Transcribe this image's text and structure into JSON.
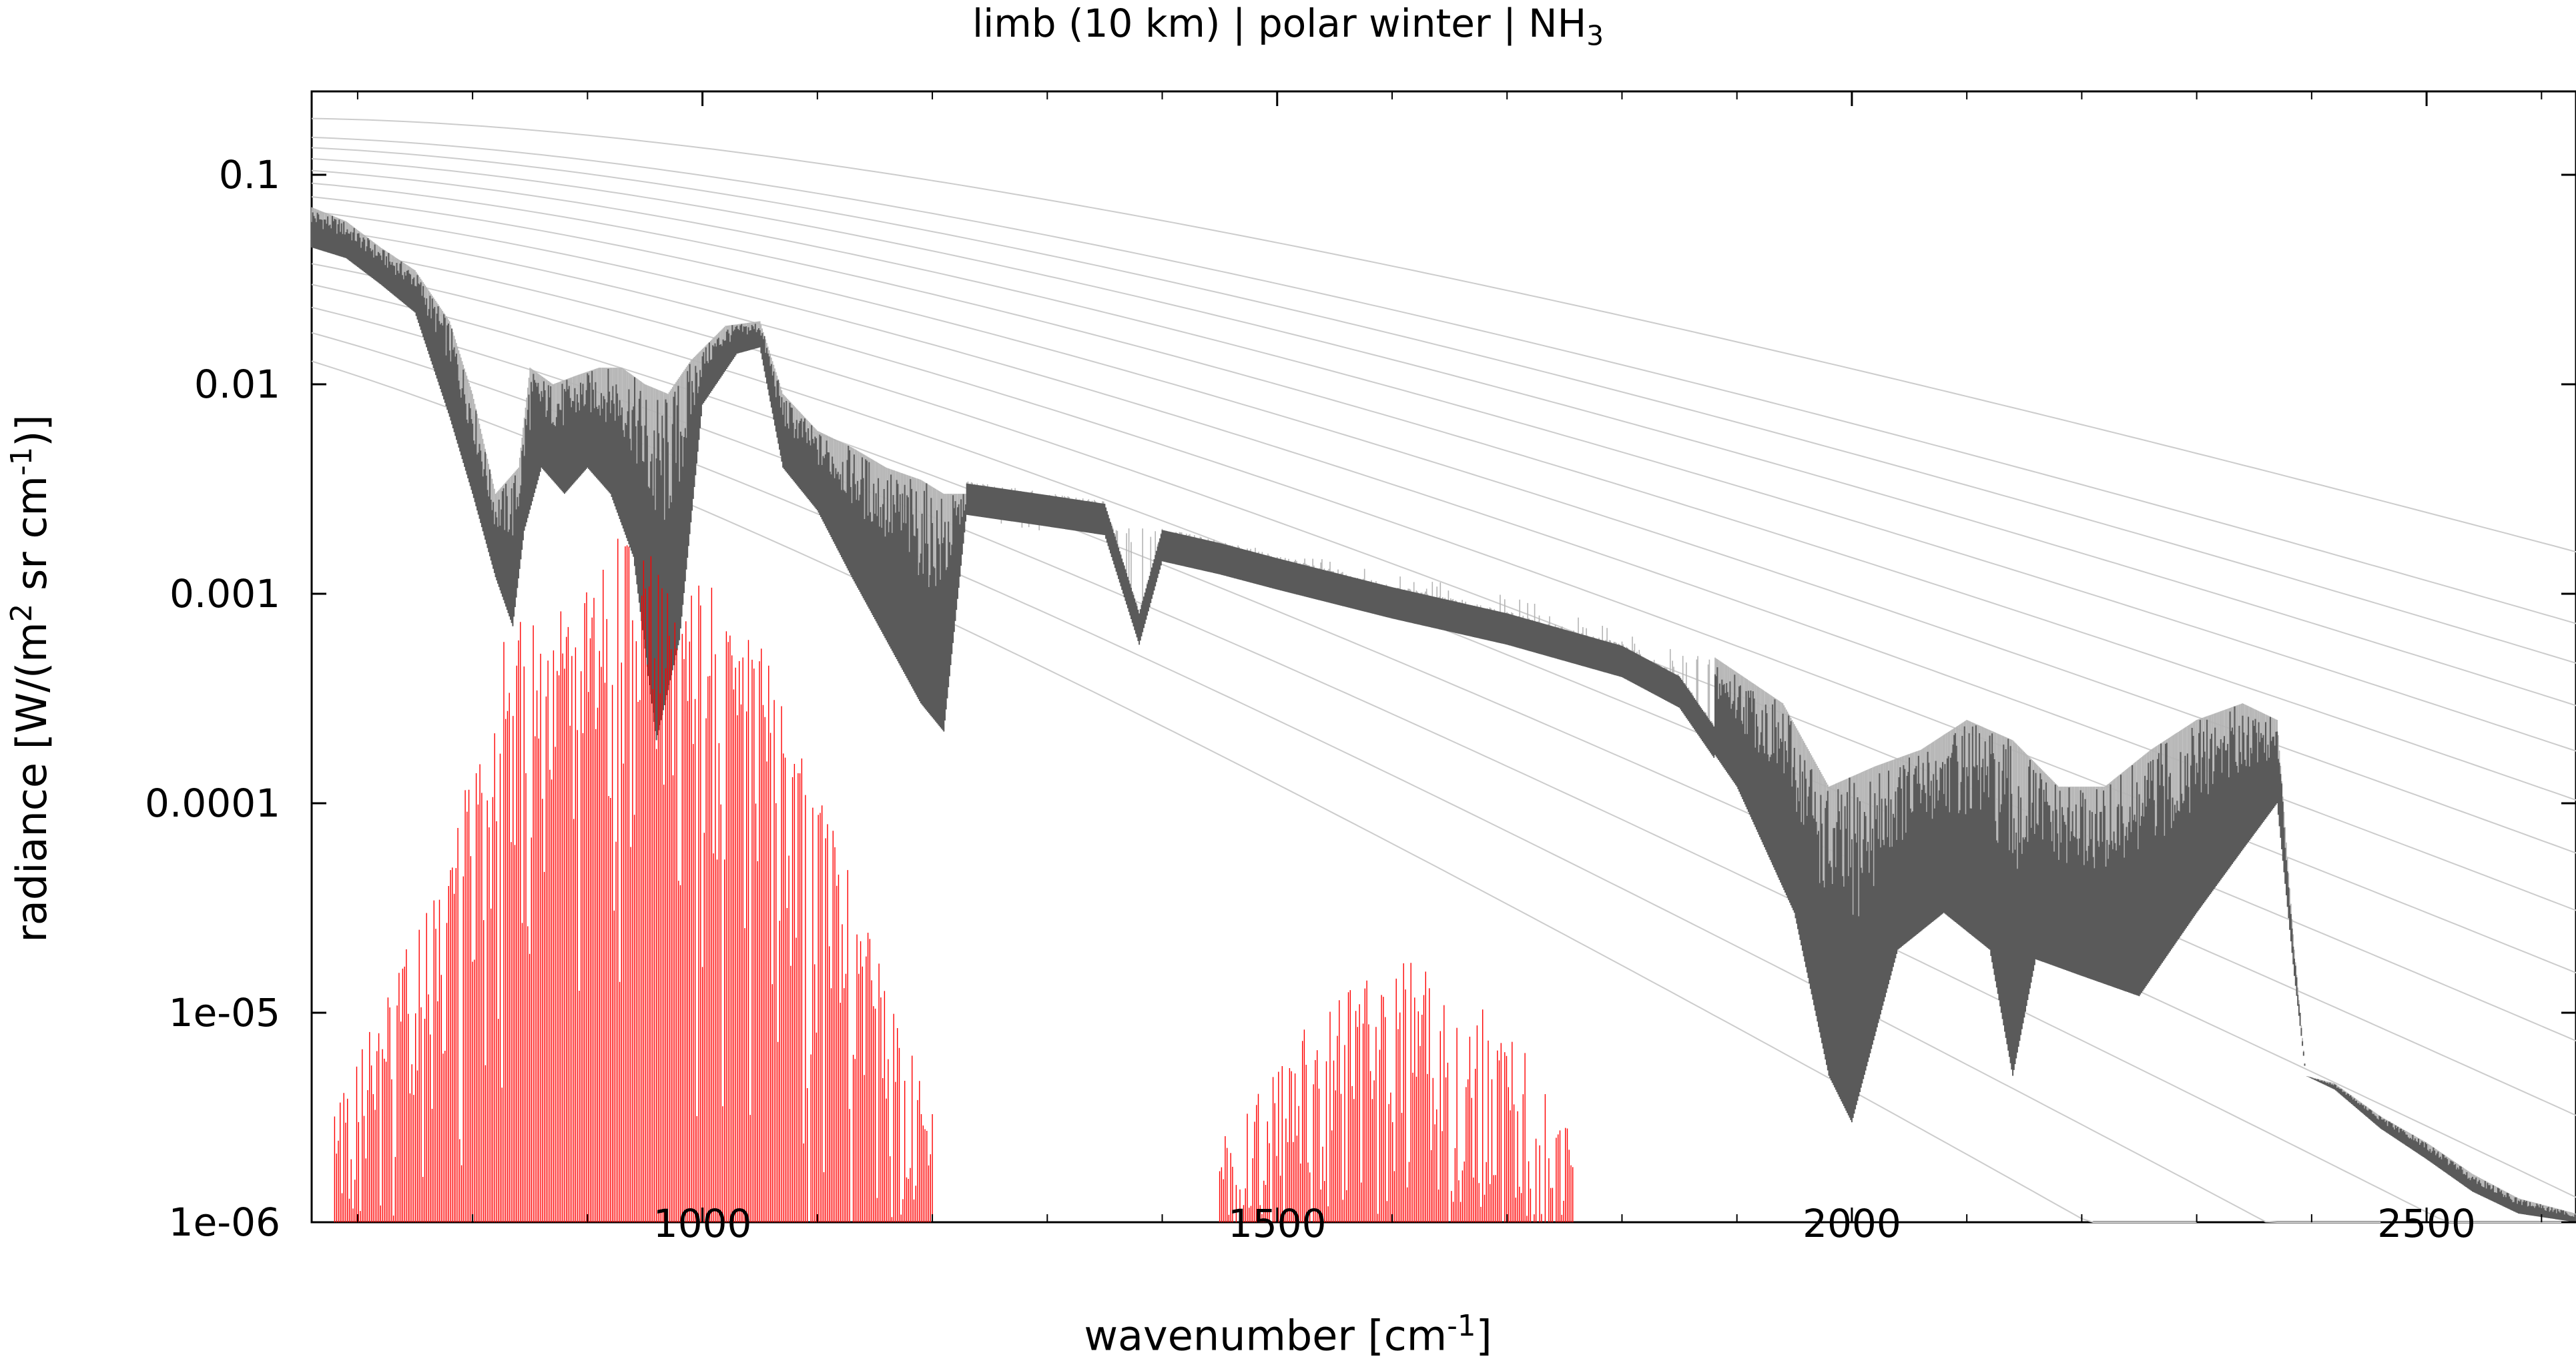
{
  "chart_data": {
    "type": "line",
    "title": "limb (10 km) | polar winter | NH",
    "title_subscript": "3",
    "xlabel": "wavenumber [cm",
    "xlabel_sup": "-1",
    "xlabel_close": "]",
    "ylabel": "radiance [W/(m",
    "ylabel_sup1": "2",
    "ylabel_mid": " sr cm",
    "ylabel_sup2": "-1",
    "ylabel_close": ")]",
    "xlim": [
      660,
      2630
    ],
    "ylim": [
      1e-06,
      0.25
    ],
    "y_scale": "log",
    "x_ticks": [
      1000,
      1500,
      2000,
      2500
    ],
    "y_ticks": [
      0.1,
      0.01,
      0.001,
      0.0001,
      1e-05,
      1e-06
    ],
    "y_tick_labels": [
      "0.1",
      "0.01",
      "0.001",
      "0.0001",
      "1e-05",
      "1e-06"
    ],
    "grid": false,
    "colors": {
      "total_dark": "#5a5a5a",
      "total_light": "#b4b4b4",
      "nh3_contribution": "#ff0000",
      "planck_reference": "#cccccc"
    },
    "series": [
      {
        "role": "total radiance (upper envelope)",
        "x": [
          660,
          690,
          720,
          750,
          780,
          800,
          820,
          840,
          850,
          870,
          890,
          910,
          930,
          950,
          970,
          990,
          1020,
          1050,
          1070,
          1100,
          1130,
          1160,
          1190,
          1210,
          1230,
          1300,
          1400,
          1500,
          1600,
          1700,
          1800,
          1880,
          1940,
          1980,
          2020,
          2060,
          2100,
          2140,
          2180,
          2220,
          2260,
          2300,
          2340,
          2370,
          2385,
          2395,
          2420,
          2460,
          2500,
          2540,
          2580,
          2630
        ],
        "y": [
          0.07,
          0.06,
          0.045,
          0.035,
          0.02,
          0.009,
          0.003,
          0.004,
          0.012,
          0.01,
          0.011,
          0.012,
          0.012,
          0.01,
          0.009,
          0.013,
          0.019,
          0.02,
          0.009,
          0.006,
          0.005,
          0.004,
          0.0035,
          0.003,
          0.003,
          0.0026,
          0.002,
          0.0016,
          0.0013,
          0.001,
          0.0007,
          0.0005,
          0.0003,
          0.00012,
          0.00015,
          0.00018,
          0.00025,
          0.0002,
          0.00012,
          0.00012,
          0.00018,
          0.00025,
          0.0003,
          0.00025,
          2e-05,
          5e-06,
          4.6e-06,
          3.2e-06,
          2.4e-06,
          1.7e-06,
          1.3e-06,
          1.1e-06
        ]
      },
      {
        "role": "total radiance (lower envelope)",
        "x": [
          660,
          690,
          720,
          750,
          780,
          800,
          820,
          835,
          845,
          860,
          880,
          900,
          920,
          940,
          960,
          980,
          1000,
          1030,
          1050,
          1070,
          1100,
          1130,
          1160,
          1190,
          1210,
          1230,
          1300,
          1350,
          1380,
          1400,
          1450,
          1500,
          1600,
          1700,
          1800,
          1850,
          1900,
          1950,
          1980,
          2000,
          2040,
          2080,
          2120,
          2140,
          2160,
          2200,
          2250,
          2300,
          2340,
          2370,
          2385,
          2395,
          2420,
          2460,
          2500,
          2540,
          2580,
          2630
        ],
        "y": [
          0.045,
          0.04,
          0.03,
          0.022,
          0.007,
          0.003,
          0.0012,
          0.0007,
          0.002,
          0.004,
          0.003,
          0.004,
          0.003,
          0.0015,
          0.0002,
          0.0006,
          0.008,
          0.014,
          0.015,
          0.004,
          0.0025,
          0.0012,
          0.0006,
          0.0003,
          0.00022,
          0.0025,
          0.0022,
          0.002,
          0.0006,
          0.0015,
          0.0013,
          0.0011,
          0.0008,
          0.0006,
          0.00042,
          0.0003,
          0.00012,
          3e-05,
          5e-06,
          3e-06,
          2e-05,
          3e-05,
          2e-05,
          5e-06,
          1.8e-05,
          1.5e-05,
          1.2e-05,
          3e-05,
          6e-05,
          0.0001,
          1.5e-05,
          5e-06,
          4.3e-06,
          2.8e-06,
          2e-06,
          1.4e-06,
          1.1e-06,
          1e-06
        ]
      },
      {
        "role": "NH3 contribution (band 1 envelope)",
        "x": [
          680,
          700,
          720,
          740,
          760,
          780,
          800,
          820,
          840,
          860,
          880,
          900,
          920,
          940,
          960,
          980,
          1000,
          1020,
          1040,
          1060,
          1080,
          1100,
          1120,
          1140,
          1160,
          1180,
          1200
        ],
        "y": [
          3e-06,
          6e-06,
          1e-05,
          1.8e-05,
          3e-05,
          6e-05,
          0.00018,
          0.0005,
          0.0008,
          0.0007,
          0.0009,
          0.0011,
          0.0018,
          0.0019,
          0.0015,
          0.0008,
          0.0012,
          0.0009,
          0.0007,
          0.0005,
          0.00025,
          0.00012,
          6e-05,
          3e-05,
          1.5e-05,
          6e-06,
          3e-06
        ]
      },
      {
        "role": "NH3 contribution (band 2 envelope)",
        "x": [
          1450,
          1480,
          1510,
          1540,
          1570,
          1600,
          1620,
          1640,
          1670,
          1700,
          1730,
          1760
        ],
        "y": [
          1.5e-06,
          3e-06,
          6e-06,
          1e-05,
          1.4e-05,
          1.3e-05,
          2.2e-05,
          1.2e-05,
          1e-05,
          8e-06,
          4e-06,
          1.5e-06
        ]
      }
    ],
    "reference_curves": {
      "role": "Planck curves",
      "temperatures_K": [
        320,
        300,
        290,
        280,
        270,
        260,
        250,
        240,
        230,
        220,
        210,
        200,
        190,
        180,
        170
      ]
    }
  }
}
